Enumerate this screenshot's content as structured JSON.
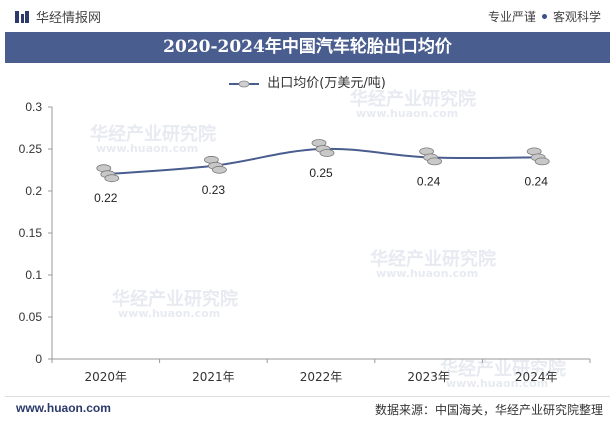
{
  "header": {
    "brand": "华经情报网",
    "slogan_left": "专业严谨",
    "slogan_right": "客观科学"
  },
  "title": "2020-2024年中国汽车轮胎出口均价",
  "footer": {
    "website": "www.huaon.com",
    "source": "数据来源：中国海关，华经产业研究院整理"
  },
  "watermark": {
    "text": "华经产业研究院",
    "url": "www.huaon.com"
  },
  "colors": {
    "title_bg": "#4a5d8f",
    "line": "#4a5d8f",
    "coin": "#c8c8c8"
  },
  "chart_data": {
    "type": "line",
    "categories": [
      "2020年",
      "2021年",
      "2022年",
      "2023年",
      "2024年"
    ],
    "series": [
      {
        "name": "出口均价(万美元/吨)",
        "values": [
          0.22,
          0.23,
          0.25,
          0.24,
          0.24
        ]
      }
    ],
    "data_labels": [
      "0.22",
      "0.23",
      "0.25",
      "0.24",
      "0.24"
    ],
    "yticks": [
      "0",
      "0.05",
      "0.1",
      "0.15",
      "0.2",
      "0.25",
      "0.3"
    ],
    "ylim": [
      0,
      0.3
    ],
    "legend_position": "top-center",
    "grid": false
  }
}
